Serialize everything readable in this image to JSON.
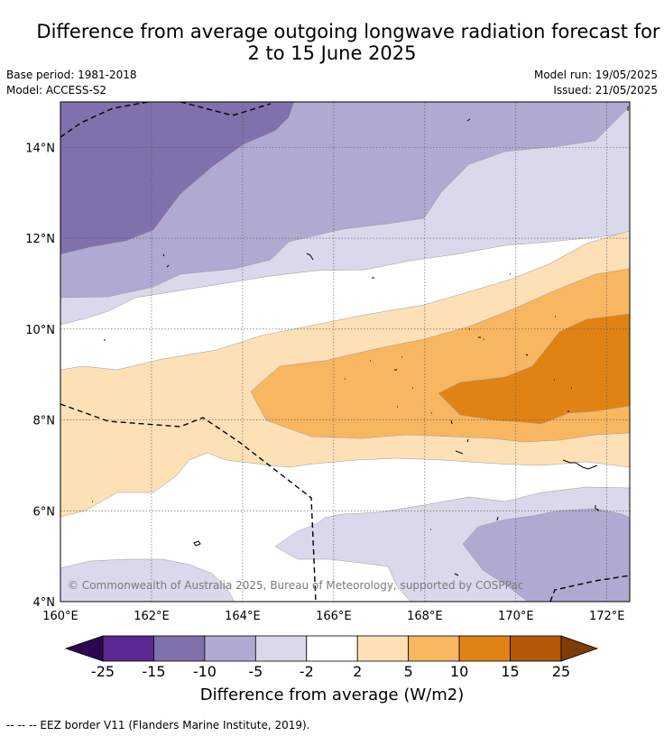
{
  "title": {
    "line1": "Difference from average outgoing longwave radiation forecast for",
    "line2": "2 to 15 June 2025"
  },
  "meta": {
    "base_period": "Base period: 1981-2018",
    "model": "Model: ACCESS-S2",
    "model_run": "Model run: 19/05/2025",
    "issued": "Issued: 21/05/2025"
  },
  "map": {
    "lat_range": [
      4,
      15
    ],
    "lon_range": [
      160,
      172.5
    ],
    "lat_ticks": [
      "4°N",
      "6°N",
      "8°N",
      "10°N",
      "12°N",
      "14°N"
    ],
    "lon_ticks": [
      "160°E",
      "162°E",
      "164°E",
      "166°E",
      "168°E",
      "170°E",
      "172°E"
    ],
    "copyright": "© Commonwealth of Australia 2025, Bureau of Meteorology, supported by COSPPac",
    "colors": {
      "c_neg15_neg10": "#8070ab",
      "c_neg10_neg5": "#b0a9d1",
      "c_neg5_neg2": "#d9d9eb",
      "c_2_5": "#fde0b6",
      "c_5_10": "#f9b660",
      "c_10_15": "#e08314"
    }
  },
  "colorbar": {
    "labels": [
      "-25",
      "-15",
      "-10",
      "-5",
      "-2",
      "2",
      "5",
      "10",
      "15",
      "25"
    ],
    "colors": [
      "#5b2790",
      "#8070ab",
      "#b0a9d1",
      "#d9d9eb",
      "#ffffff",
      "#fde0b6",
      "#f9b660",
      "#e08314",
      "#b35908"
    ],
    "extend_low": "#2d0550",
    "extend_high": "#7f3b08",
    "title": "Difference from average (W/m2)"
  },
  "footnote": "-- -- -- EEZ border V11 (Flanders Marine Institute, 2019)."
}
